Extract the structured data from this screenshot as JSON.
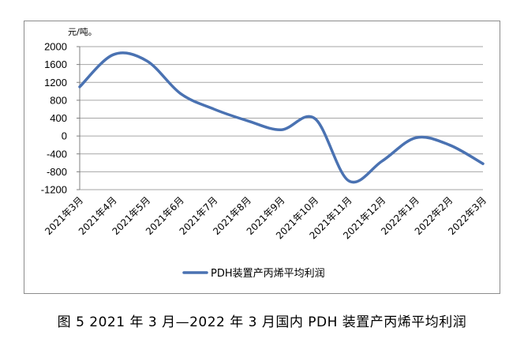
{
  "chart_data": {
    "type": "line",
    "unit_label": "元/吨。",
    "categories": [
      "2021年3月",
      "2021年4月",
      "2021年5月",
      "2021年6月",
      "2021年7月",
      "2021年8月",
      "2021年9月",
      "2021年10月",
      "2021年11月",
      "2021年12月",
      "2022年1月",
      "2022年2月",
      "2022年3月"
    ],
    "series": [
      {
        "name": "PDH装置产丙烯平均利润",
        "color": "#4a72b2",
        "values": [
          1100,
          1820,
          1680,
          950,
          600,
          340,
          140,
          390,
          -1000,
          -560,
          -40,
          -200,
          -620
        ]
      }
    ],
    "ylim": [
      -1200,
      2000
    ],
    "yticks": [
      2000,
      1600,
      1200,
      800,
      400,
      0,
      -400,
      -800,
      -1200
    ],
    "grid": true,
    "legend_position": "bottom"
  },
  "caption": "图 5  2021 年 3 月—2022 年 3 月国内 PDH 装置产丙烯平均利润"
}
